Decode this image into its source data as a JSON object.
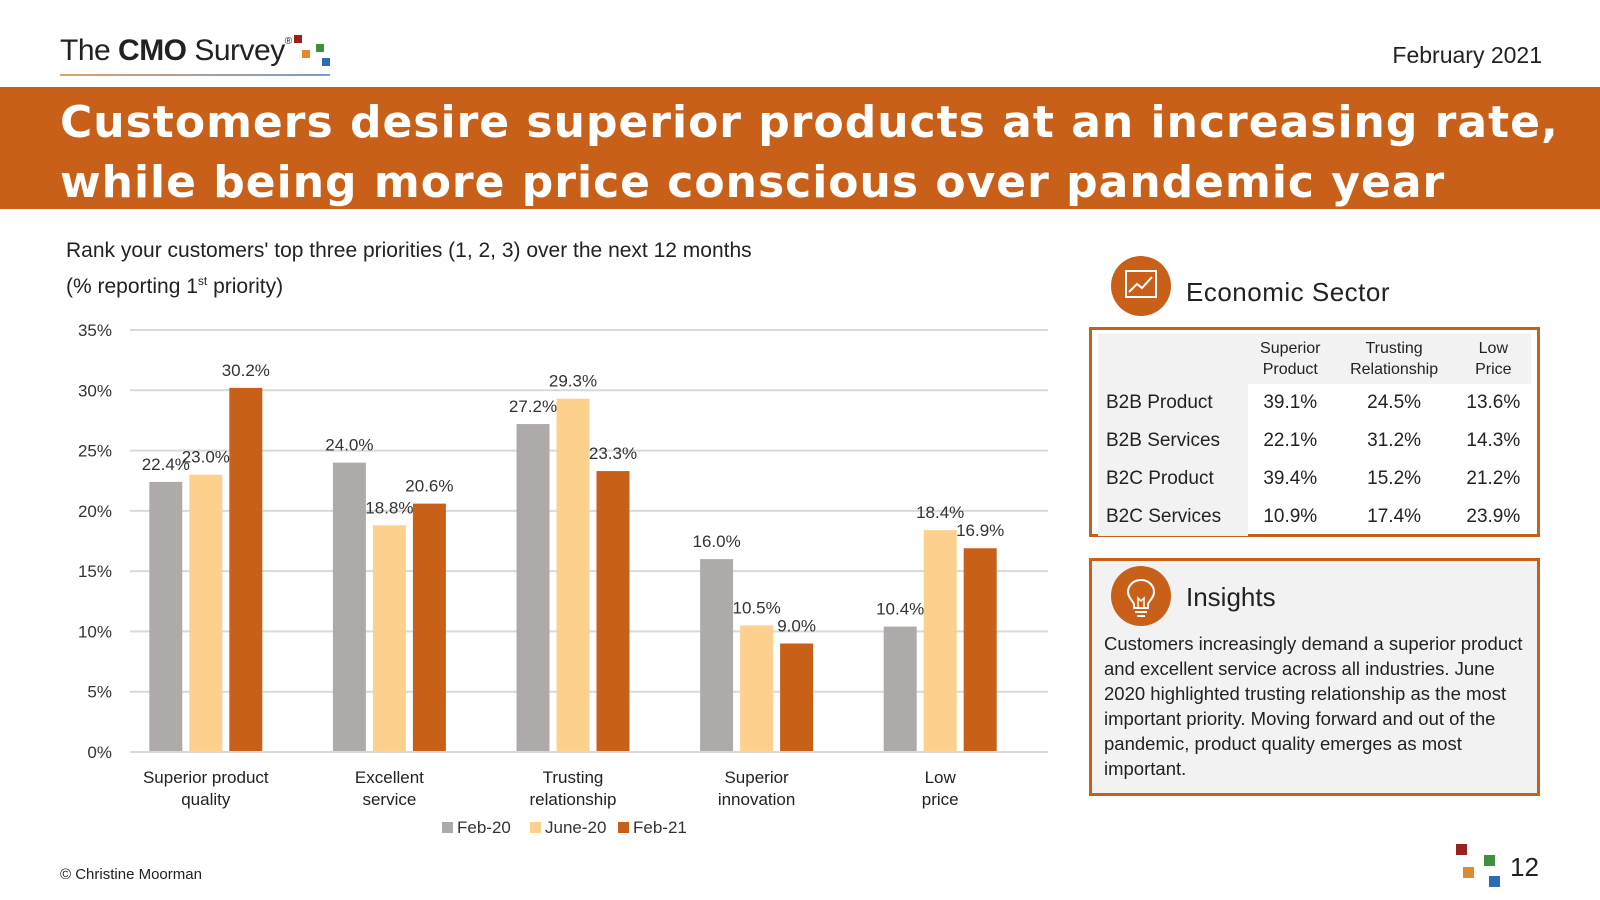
{
  "header": {
    "logo_pre": "The ",
    "logo_bold": "CMO",
    "logo_post": " Survey",
    "logo_reg": "®",
    "date": "February 2021"
  },
  "title": "Customers desire superior products at an increasing rate, while being more price conscious over pandemic year",
  "subtitle": {
    "line1": "Rank your customers' top three priorities (1, 2, 3) over the next 12 months",
    "line2_pre": "(% reporting 1",
    "line2_sup": "st",
    "line2_post": " priority)"
  },
  "colors": {
    "brand": "#c8601a",
    "feb20": "#aeaaaa",
    "june20": "#fdd08e",
    "feb21": "#c8601a",
    "logo_red": "#9b2020",
    "logo_orange": "#e0892e",
    "logo_green": "#3f8f3f",
    "logo_blue": "#2e6bb5"
  },
  "chart_data": {
    "type": "bar",
    "title": "",
    "xlabel": "",
    "ylabel": "",
    "ylim": [
      0,
      35
    ],
    "yticks": [
      "0%",
      "5%",
      "10%",
      "15%",
      "20%",
      "25%",
      "30%",
      "35%"
    ],
    "grid": true,
    "legend_position": "bottom",
    "categories": [
      [
        "Superior product",
        "quality"
      ],
      [
        "Excellent",
        "service"
      ],
      [
        "Trusting",
        "relationship"
      ],
      [
        "Superior",
        "innovation"
      ],
      [
        "Low",
        "price"
      ]
    ],
    "series": [
      {
        "name": "Feb-20",
        "values": [
          22.4,
          24.0,
          27.2,
          16.0,
          10.4
        ],
        "labels": [
          "22.4%",
          "24.0%",
          "27.2%",
          "16.0%",
          "10.4%"
        ]
      },
      {
        "name": "June-20",
        "values": [
          23.0,
          18.8,
          29.3,
          10.5,
          18.4
        ],
        "labels": [
          "23.0%",
          "18.8%",
          "29.3%",
          "10.5%",
          "18.4%"
        ]
      },
      {
        "name": "Feb-21",
        "values": [
          30.2,
          20.6,
          23.3,
          9.0,
          16.9
        ],
        "labels": [
          "30.2%",
          "20.6%",
          "23.3%",
          "9.0%",
          "16.9%"
        ]
      }
    ]
  },
  "economic": {
    "title": "Economic Sector",
    "columns": [
      [
        "Superior",
        "Product"
      ],
      [
        "Trusting",
        "Relationship"
      ],
      [
        "Low",
        "Price"
      ]
    ],
    "rows": [
      {
        "label": "B2B Product",
        "values": [
          "39.1%",
          "24.5%",
          "13.6%"
        ]
      },
      {
        "label": "B2B Services",
        "values": [
          "22.1%",
          "31.2%",
          "14.3%"
        ]
      },
      {
        "label": "B2C Product",
        "values": [
          "39.4%",
          "15.2%",
          "21.2%"
        ]
      },
      {
        "label": "B2C Services",
        "values": [
          "10.9%",
          "17.4%",
          "23.9%"
        ]
      }
    ]
  },
  "insights": {
    "title": "Insights",
    "text": "Customers increasingly demand a superior product and excellent service across all industries. June 2020 highlighted trusting relationship as the most important priority. Moving forward and out of the pandemic, product quality emerges as most important."
  },
  "footer": {
    "copyright": "© Christine Moorman",
    "page": "12"
  }
}
